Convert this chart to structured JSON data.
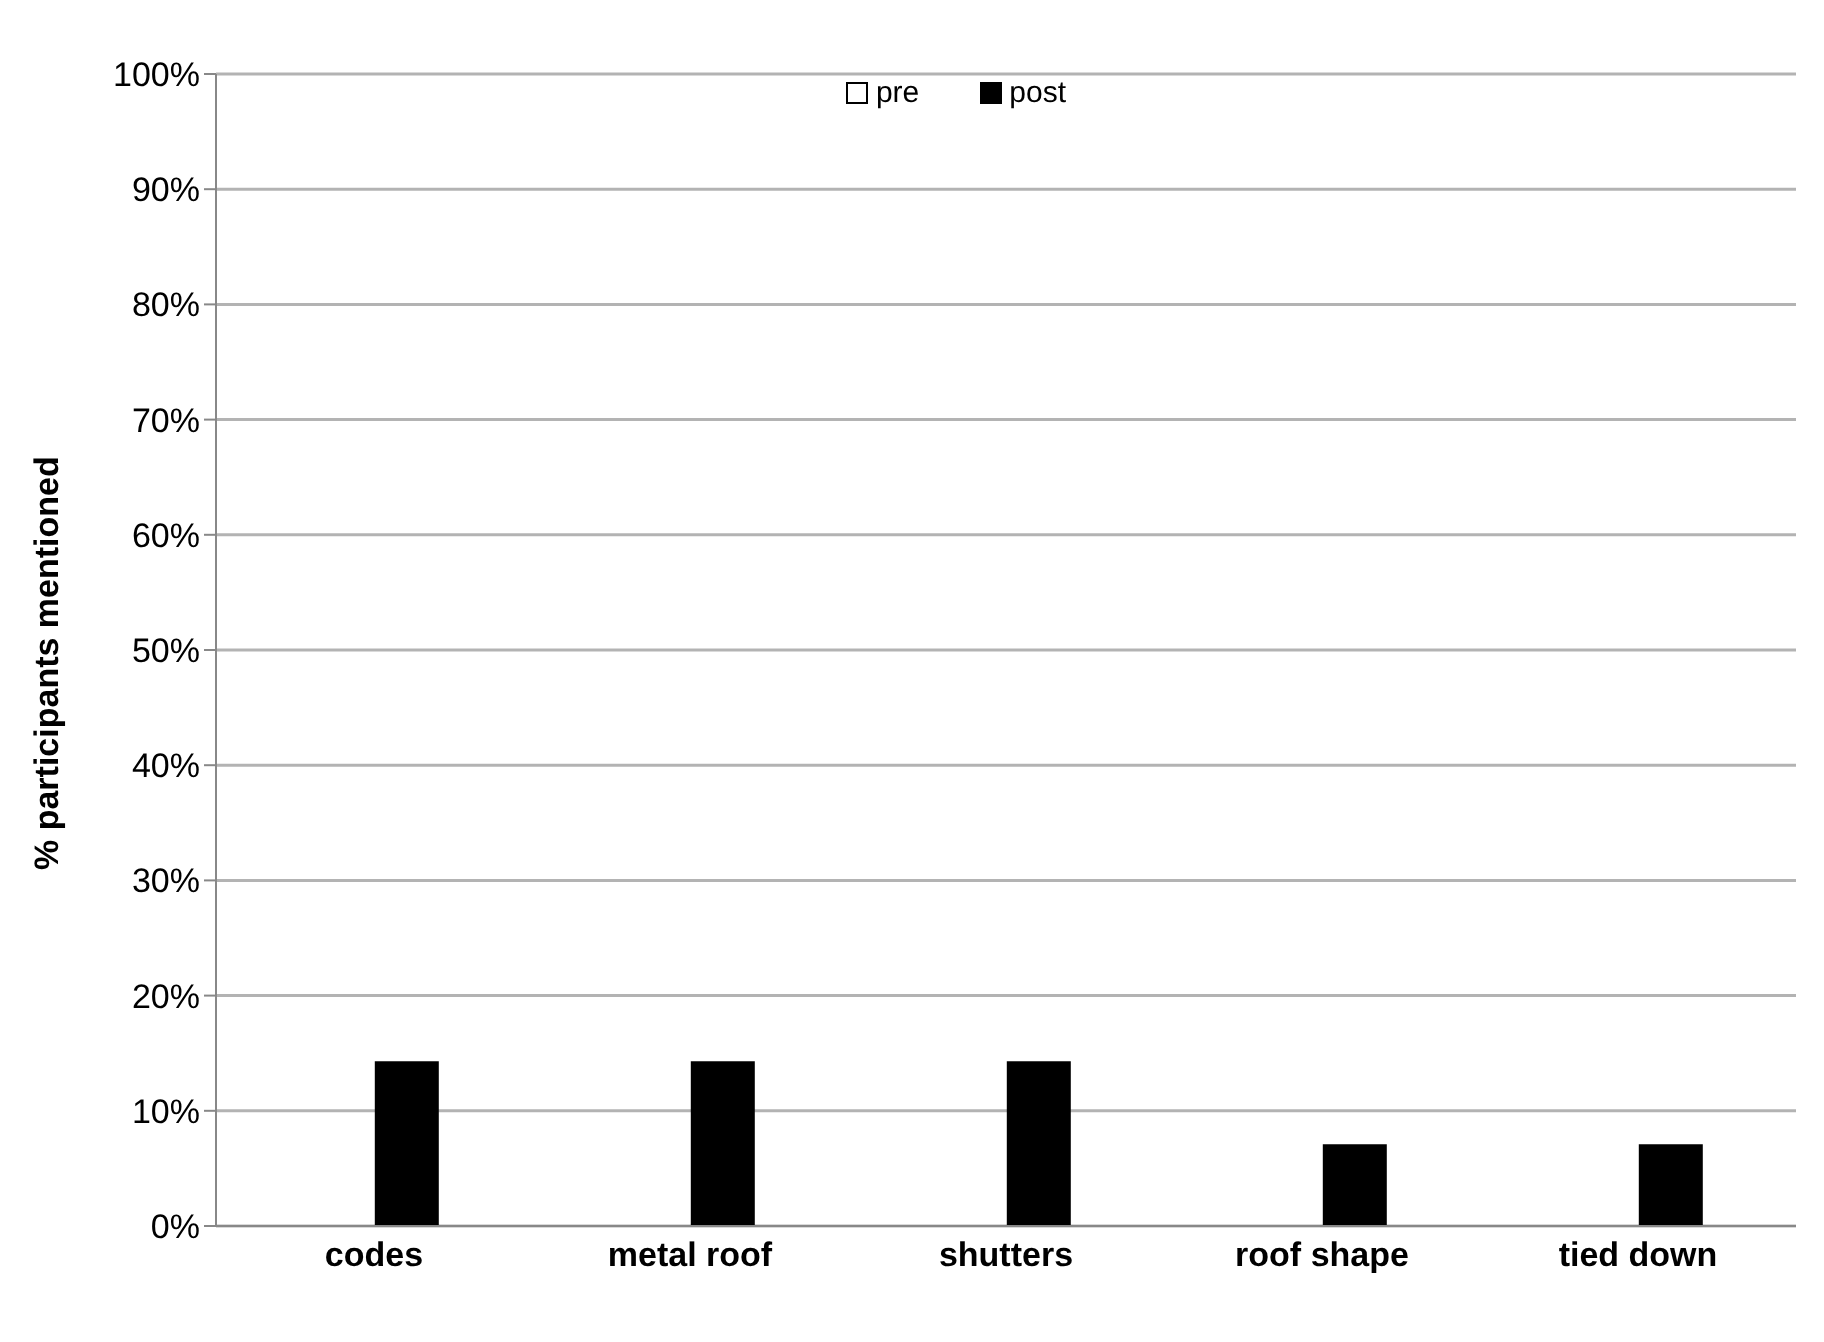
{
  "chart_data": {
    "type": "bar",
    "ylabel": "% participants mentioned",
    "categories": [
      "codes",
      "metal roof",
      "shutters",
      "roof shape",
      "tied down"
    ],
    "series": [
      {
        "name": "pre",
        "color": "#ffffff",
        "values": [
          0,
          0,
          0,
          0,
          0
        ]
      },
      {
        "name": "post",
        "color": "#000000",
        "values": [
          14.3,
          14.3,
          14.3,
          7.1,
          7.1
        ]
      }
    ],
    "ylim": [
      0,
      100
    ],
    "yticks": [
      {
        "value": 0,
        "label": "0%"
      },
      {
        "value": 10,
        "label": "10%"
      },
      {
        "value": 20,
        "label": "20%"
      },
      {
        "value": 30,
        "label": "30%"
      },
      {
        "value": 40,
        "label": "40%"
      },
      {
        "value": 50,
        "label": "50%"
      },
      {
        "value": 60,
        "label": "60%"
      },
      {
        "value": 70,
        "label": "70%"
      },
      {
        "value": 80,
        "label": "80%"
      },
      {
        "value": 90,
        "label": "90%"
      },
      {
        "value": 100,
        "label": "100%"
      }
    ],
    "grid": "y",
    "legend": "top"
  }
}
